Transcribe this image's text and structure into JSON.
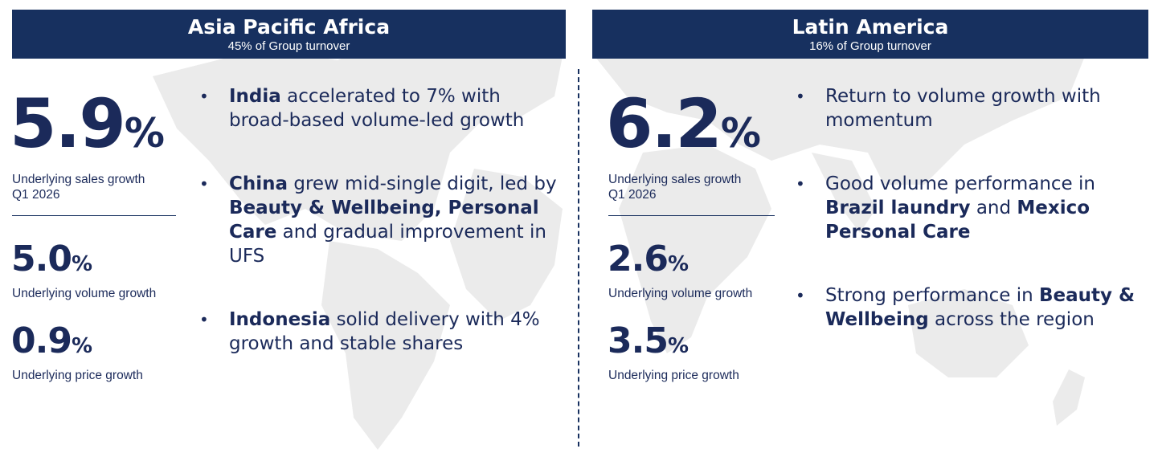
{
  "left": {
    "title": "Asia Pacific Africa",
    "subtitle": "45% of Group turnover",
    "headline": {
      "value": "5.9",
      "unit": "%",
      "label_line1": "Underlying sales growth",
      "label_line2": "Q1 2026"
    },
    "volume": {
      "value": "5.0",
      "unit": "%",
      "label": "Underlying volume growth"
    },
    "price": {
      "value": "0.9",
      "unit": "%",
      "label": "Underlying price growth"
    },
    "bullets": [
      {
        "b1": "India",
        "t1": " accelerated to 7% with broad-based volume-led growth"
      },
      {
        "b1": "China",
        "t1": " grew mid-single digit, led by ",
        "b2": "Beauty & Wellbeing, Personal Care",
        "t2": " and gradual improvement in UFS"
      },
      {
        "b1": "Indonesia",
        "t1": " solid delivery with 4% growth and stable shares"
      }
    ]
  },
  "right": {
    "title": "Latin America",
    "subtitle": "16% of Group turnover",
    "headline": {
      "value": "6.2",
      "unit": "%",
      "label_line1": "Underlying sales growth",
      "label_line2": "Q1 2026"
    },
    "volume": {
      "value": "2.6",
      "unit": "%",
      "label": "Underlying volume growth"
    },
    "price": {
      "value": "3.5",
      "unit": "%",
      "label": "Underlying price growth"
    },
    "bullets": [
      {
        "t1": "Return to volume growth with momentum"
      },
      {
        "t1": "Good volume performance in ",
        "b1": "Brazil laundry",
        "t2": " and ",
        "b2": "Mexico Personal Care"
      },
      {
        "t1": "Strong performance in ",
        "b1": "Beauty & Wellbeing",
        "t2": " across the region"
      }
    ]
  },
  "bullet_glyph": "•",
  "colors": {
    "header_bg": "#17305f",
    "text": "#1b2a5a",
    "map": "#ebebeb"
  }
}
